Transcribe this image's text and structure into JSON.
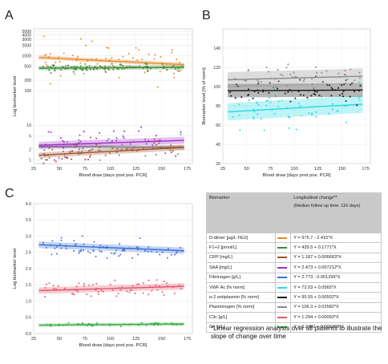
{
  "chart_data": [
    {
      "panel": "A",
      "type": "scatter",
      "ylabel": "Log biomarker level",
      "xlabel": "Blood draw [days post pos. PCR]",
      "x_ticks": [
        25,
        50,
        75,
        100,
        125,
        150,
        175
      ],
      "y_ticks": [
        1,
        2,
        5,
        10,
        100,
        200,
        500,
        1000,
        2000,
        3000,
        4000,
        5000
      ],
      "y_tick_labels": [
        "1",
        "2",
        "5",
        "10",
        "100",
        "200",
        "500",
        "1000",
        "2000",
        "3000",
        "4000",
        "5000"
      ],
      "xlim": [
        25,
        180
      ],
      "ylim": [
        0.8,
        6000
      ],
      "y_scale": "log",
      "grid": true,
      "series": [
        {
          "color": "#e8892a",
          "fit": {
            "intercept": 975.7,
            "slope": -2.415
          }
        },
        {
          "color": "#3a8a34",
          "fit": {
            "intercept": 439.5,
            "slope": 0.1771
          }
        },
        {
          "color": "#7b7b7b",
          "fit": {
            "intercept": 2.5,
            "slope": -0.0009
          }
        },
        {
          "color": "#a02bc9",
          "fit": {
            "intercept": 2.473,
            "slope": 0.007212
          }
        },
        {
          "color": "#a0522d",
          "fit": {
            "intercept": 1.187,
            "slope": 0.006663
          }
        }
      ]
    },
    {
      "panel": "B",
      "type": "scatter",
      "ylabel": "Biomarker level [% of norm]",
      "xlabel": "Blood draw [days post pos. PCR]",
      "x_ticks": [
        25,
        50,
        75,
        100,
        125,
        150,
        175
      ],
      "y_ticks": [
        20,
        40,
        60,
        80,
        100,
        120,
        140
      ],
      "xlim": [
        25,
        180
      ],
      "ylim": [
        20,
        160
      ],
      "grid": true,
      "series": [
        {
          "color": "#26d9e6",
          "fit": {
            "intercept": 72.03,
            "slope": 0.0565
          }
        },
        {
          "color": "#111111",
          "fit": {
            "intercept": 95.55,
            "slope": 0.00502
          }
        },
        {
          "color": "#8a8a8a",
          "fit": {
            "intercept": 106.3,
            "slope": 0.02582
          }
        }
      ]
    },
    {
      "panel": "C",
      "type": "scatter",
      "ylabel": "Log biomarker level",
      "xlabel": "Blood draw [days post pos. PCR]",
      "x_ticks": [
        25,
        50,
        75,
        100,
        125,
        150,
        175
      ],
      "y_ticks": [
        0,
        0.5,
        1,
        1.5,
        2,
        2.5,
        3,
        3.5,
        4
      ],
      "y_tick_labels": [
        "0.0",
        "0.5",
        "1.0",
        "1.5",
        "2.0",
        "2.5",
        "3.0",
        "3.5",
        "4.0"
      ],
      "xlim": [
        25,
        180
      ],
      "ylim": [
        0,
        4
      ],
      "grid": true,
      "series": [
        {
          "color": "#3b6fd8",
          "fit": {
            "intercept": 2.773,
            "slope": -0.001299
          }
        },
        {
          "color": "#e4566a",
          "fit": {
            "intercept": 1.294,
            "slope": 0.00093
          }
        },
        {
          "color": "#3fae4a",
          "fit": {
            "intercept": 0.2492,
            "slope": 0.000268
          }
        }
      ]
    }
  ],
  "legend": {
    "col1": "Biomarker",
    "col2": "Longitudinal change**",
    "col2_note": "(Median follow up time: 116 days)",
    "rows": [
      {
        "name": "D-dimer [µg/L FEU]",
        "color": "#e8892a",
        "eq": "Y = 975.7 - 2.415*X"
      },
      {
        "name": "F1+2 [pmol/L]",
        "color": "#3a8a34",
        "eq": "Y = 439.5 + 0.1771*X"
      },
      {
        "name": "CRP [mg/L]",
        "color": "#a0522d",
        "eq": "Y = 1.187 + 0.006663*X"
      },
      {
        "name": "SAA [mg/L]",
        "color": "#a02bc9",
        "eq": "Y = 2.473 + 0.007212*X"
      },
      {
        "name": "Fibrinogen [g/L]",
        "color": "#3b6fd8",
        "eq": "Y = 2.773 - 0.001299*X"
      },
      {
        "name": "VWF Ac [% norm]",
        "color": "#26d9e6",
        "eq": "Y = 72.03 + 0.0565*X"
      },
      {
        "name": "α-2 antiplasmin [% norm]",
        "color": "#111111",
        "eq": "Y = 95.55 + 0.00502*X"
      },
      {
        "name": "Plasminogen [% norm]",
        "color": "#8a8a8a",
        "eq": "Y = 106.3 + 0.02582*X"
      },
      {
        "name": "C3c [g/L]",
        "color": "#e4566a",
        "eq": "Y = 1.294 + 0.00093*X"
      },
      {
        "name": "C4 [g/L]",
        "color": "#3fae4a",
        "eq": "Y = 0.2492 + 0.000268*X"
      }
    ]
  },
  "footnote": "*Linear regression analysis over all patients to illustrate the slope of change over time"
}
